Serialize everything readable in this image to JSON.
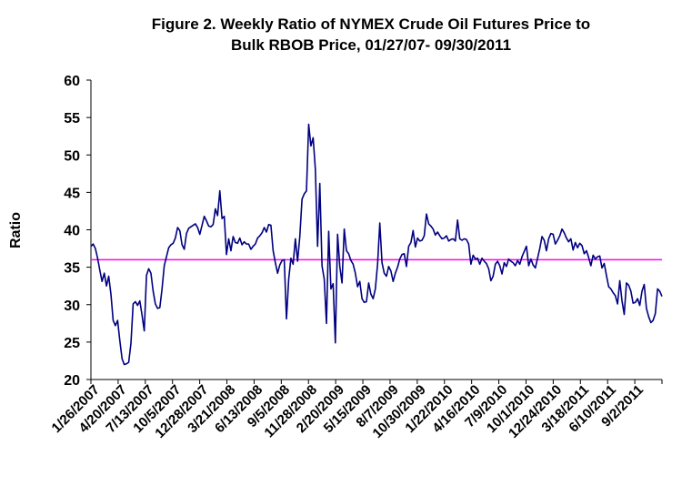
{
  "chart_data": {
    "type": "line",
    "title": "Figure 2. Weekly Ratio of NYMEX Crude Oil Futures Price to",
    "subtitle": "Bulk RBOB Price, 01/27/07- 09/30/2011",
    "xlabel": "",
    "ylabel": "Ratio",
    "ylim": [
      20,
      60
    ],
    "yticks": [
      "20",
      "25",
      "30",
      "35",
      "40",
      "45",
      "50",
      "55",
      "60"
    ],
    "xtick_labels": [
      "1/26/2007",
      "4/20/2007",
      "7/13/2007",
      "10/5/2007",
      "12/28/2007",
      "3/21/2008",
      "6/13/2008",
      "9/5/2008",
      "11/28/2008",
      "2/20/2009",
      "5/15/2009",
      "8/7/2009",
      "10/30/2009",
      "1/22/2010",
      "4/16/2010",
      "7/9/2010",
      "10/1/2010",
      "12/24/2010",
      "3/18/2011",
      "6/10/2011",
      "9/2/2011"
    ],
    "grid": false,
    "legend": "none",
    "reference_line": {
      "value": 36,
      "color": "#ff00ff"
    },
    "series_color": "#000080",
    "series": [
      {
        "values": [
          37.8,
          38.1,
          37.5,
          36.2,
          34.6,
          33.1,
          34.2,
          32.5,
          33.8,
          31.4,
          27.9,
          27.2,
          27.9,
          25.2,
          22.8,
          22.0,
          22.1,
          22.3,
          24.8,
          30.1,
          30.4,
          29.9,
          30.5,
          28.6,
          26.5,
          33.9,
          34.8,
          34.2,
          31.8,
          30.1,
          29.5,
          29.6,
          32.1,
          35.2,
          36.4,
          37.6,
          38.0,
          38.2,
          38.9,
          40.3,
          39.9,
          38.0,
          37.4,
          39.5,
          40.2,
          40.4,
          40.6,
          40.8,
          40.3,
          39.4,
          40.6,
          41.8,
          41.2,
          40.5,
          40.4,
          40.7,
          42.8,
          41.9,
          45.2,
          41.5,
          41.8,
          36.7,
          38.8,
          37.2,
          39.1,
          38.3,
          38.2,
          38.9,
          38.0,
          38.4,
          38.1,
          38.1,
          37.4,
          37.8,
          38.1,
          38.9,
          39.2,
          39.6,
          40.3,
          39.7,
          40.7,
          40.6,
          37.2,
          35.6,
          34.2,
          35.3,
          35.9,
          36.0,
          28.1,
          33.4,
          36.2,
          35.4,
          38.8,
          35.8,
          39.1,
          44.1,
          44.8,
          45.2,
          54.1,
          51.2,
          52.3,
          48.1,
          37.8,
          46.2,
          35.2,
          33.4,
          27.5,
          39.8,
          32.1,
          32.8,
          24.9,
          39.4,
          35.1,
          32.9,
          40.1,
          37.2,
          36.8,
          35.9,
          35.4,
          34.2,
          32.4,
          33.1,
          30.8,
          30.3,
          30.4,
          32.9,
          31.4,
          30.8,
          32.1,
          35.4,
          40.9,
          35.6,
          34.2,
          33.8,
          35.1,
          34.5,
          33.1,
          34.2,
          35.0,
          36.1,
          36.7,
          36.8,
          35.1,
          37.8,
          38.3,
          39.9,
          37.7,
          38.9,
          38.5,
          38.6,
          39.2,
          42.1,
          40.8,
          40.5,
          40.1,
          39.3,
          39.7,
          39.2,
          38.8,
          38.9,
          39.2,
          38.5,
          38.7,
          38.8,
          38.5,
          41.3,
          38.8,
          38.6,
          38.8,
          38.7,
          38.1,
          35.4,
          36.6,
          36.1,
          36.2,
          35.4,
          36.2,
          35.8,
          35.5,
          34.8,
          33.2,
          33.8,
          35.4,
          35.8,
          35.2,
          34.1,
          35.6,
          35.1,
          36.1,
          35.8,
          35.6,
          35.2,
          35.9,
          35.4,
          36.4,
          37.1,
          37.8,
          35.2,
          36.1,
          35.3,
          34.9,
          36.2,
          37.5,
          39.1,
          38.6,
          37.2,
          38.8,
          39.5,
          39.4,
          38.1,
          38.6,
          39.2,
          40.1,
          39.6,
          38.9,
          38.4,
          38.8,
          37.3,
          38.3,
          37.6,
          38.2,
          37.9,
          36.8,
          37.2,
          36.3,
          35.2,
          36.6,
          36.1,
          36.4,
          36.5,
          34.9,
          35.5,
          33.9,
          32.4,
          32.1,
          31.6,
          31.2,
          30.1,
          33.2,
          30.5,
          28.7,
          32.9,
          32.6,
          31.8,
          30.2,
          30.3,
          30.8,
          29.9,
          31.8,
          32.7,
          29.5,
          28.4,
          27.6,
          27.9,
          28.8,
          32.1,
          31.8,
          31.1
        ]
      }
    ]
  }
}
